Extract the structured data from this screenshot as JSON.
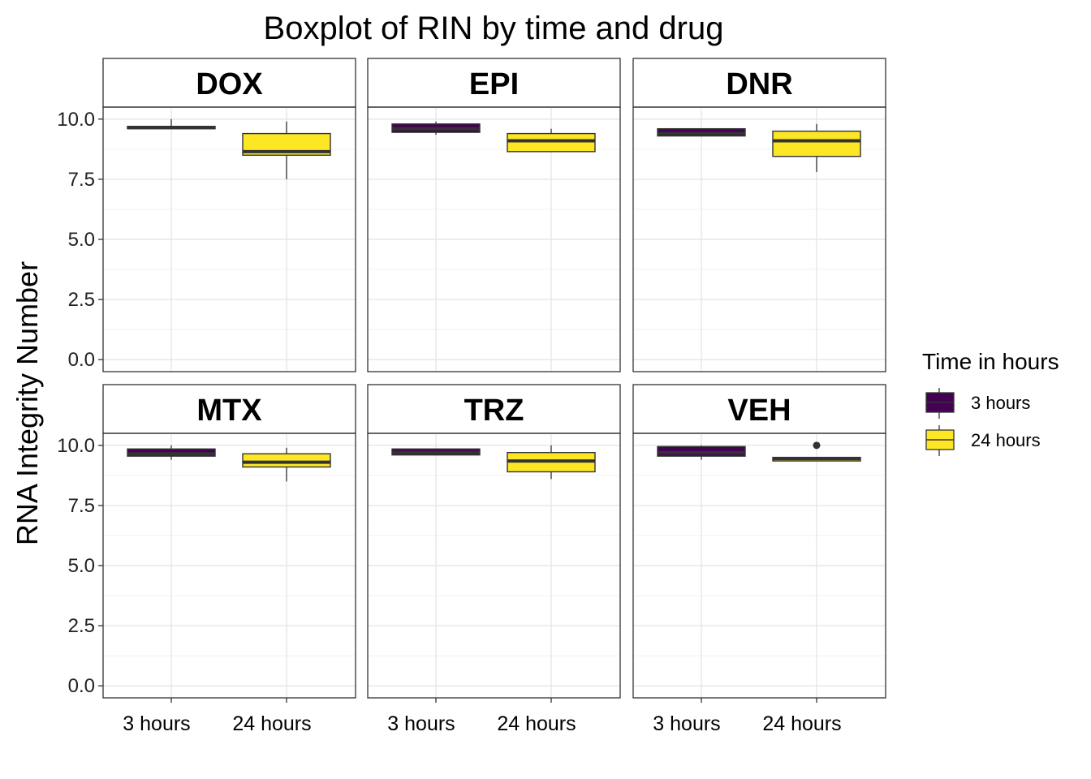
{
  "chart_data": {
    "type": "boxplot",
    "title": "Boxplot of RIN by time and drug",
    "ylabel": "RNA Integrity Number",
    "xlabel": "",
    "ylim": [
      -0.5,
      10.5
    ],
    "yticks": [
      "0.0",
      "2.5",
      "5.0",
      "7.5",
      "10.0"
    ],
    "ytick_values": [
      0,
      2.5,
      5,
      7.5,
      10
    ],
    "categories": [
      "3 hours",
      "24 hours"
    ],
    "legend": {
      "title": "Time in hours",
      "position": "right",
      "items": [
        {
          "label": "3 hours",
          "color": "#440154"
        },
        {
          "label": "24 hours",
          "color": "#FDE725"
        }
      ]
    },
    "grid": true,
    "facets": [
      {
        "name": "DOX",
        "boxes": [
          {
            "category": "3 hours",
            "min": 9.6,
            "q1": 9.6,
            "median": 9.65,
            "q3": 9.7,
            "max": 10.0,
            "outliers": []
          },
          {
            "category": "24 hours",
            "min": 7.5,
            "q1": 8.5,
            "median": 8.65,
            "q3": 9.4,
            "max": 9.9,
            "outliers": []
          }
        ]
      },
      {
        "name": "EPI",
        "boxes": [
          {
            "category": "3 hours",
            "min": 9.35,
            "q1": 9.45,
            "median": 9.6,
            "q3": 9.8,
            "max": 9.9,
            "outliers": []
          },
          {
            "category": "24 hours",
            "min": 8.65,
            "q1": 8.65,
            "median": 9.1,
            "q3": 9.4,
            "max": 9.6,
            "outliers": []
          }
        ]
      },
      {
        "name": "DNR",
        "boxes": [
          {
            "category": "3 hours",
            "min": 9.3,
            "q1": 9.3,
            "median": 9.4,
            "q3": 9.6,
            "max": 9.6,
            "outliers": []
          },
          {
            "category": "24 hours",
            "min": 7.8,
            "q1": 8.45,
            "median": 9.1,
            "q3": 9.5,
            "max": 9.8,
            "outliers": []
          }
        ]
      },
      {
        "name": "MTX",
        "boxes": [
          {
            "category": "3 hours",
            "min": 9.4,
            "q1": 9.55,
            "median": 9.65,
            "q3": 9.85,
            "max": 10.0,
            "outliers": []
          },
          {
            "category": "24 hours",
            "min": 8.5,
            "q1": 9.1,
            "median": 9.3,
            "q3": 9.65,
            "max": 9.9,
            "outliers": []
          }
        ]
      },
      {
        "name": "TRZ",
        "boxes": [
          {
            "category": "3 hours",
            "min": 9.6,
            "q1": 9.6,
            "median": 9.7,
            "q3": 9.85,
            "max": 9.85,
            "outliers": []
          },
          {
            "category": "24 hours",
            "min": 8.6,
            "q1": 8.9,
            "median": 9.35,
            "q3": 9.7,
            "max": 10.0,
            "outliers": []
          }
        ]
      },
      {
        "name": "VEH",
        "boxes": [
          {
            "category": "3 hours",
            "min": 9.4,
            "q1": 9.55,
            "median": 9.7,
            "q3": 9.95,
            "max": 10.0,
            "outliers": []
          },
          {
            "category": "24 hours",
            "min": 9.35,
            "q1": 9.35,
            "median": 9.45,
            "q3": 9.5,
            "max": 9.5,
            "outliers": [
              10.0
            ]
          }
        ]
      }
    ]
  }
}
